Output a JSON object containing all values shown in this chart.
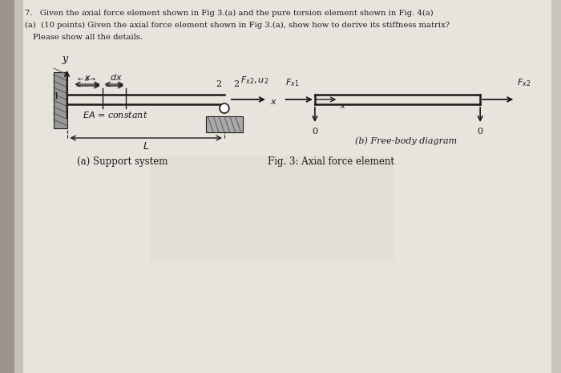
{
  "bg_color": "#c8c3bc",
  "paper_color": "#e8e3dc",
  "text_color": "#1a1a1a",
  "title_line1": "7.   Given the axial force element shown in Fig 3.(a) and the pure torsion element shown in Fig. 4(a)",
  "title_line2": "(a)  (10 points) Given the axial force element shown in Fig 3.(a), show how to derive its stiffness matrix?",
  "title_line3": "      Please show all the details.",
  "fig_caption": "Fig. 3: Axial force element",
  "caption_a": "(a) Support system",
  "caption_b": "(b) Free-body diagram",
  "line_color": "#1a1a1a",
  "hatch_color": "#555555"
}
